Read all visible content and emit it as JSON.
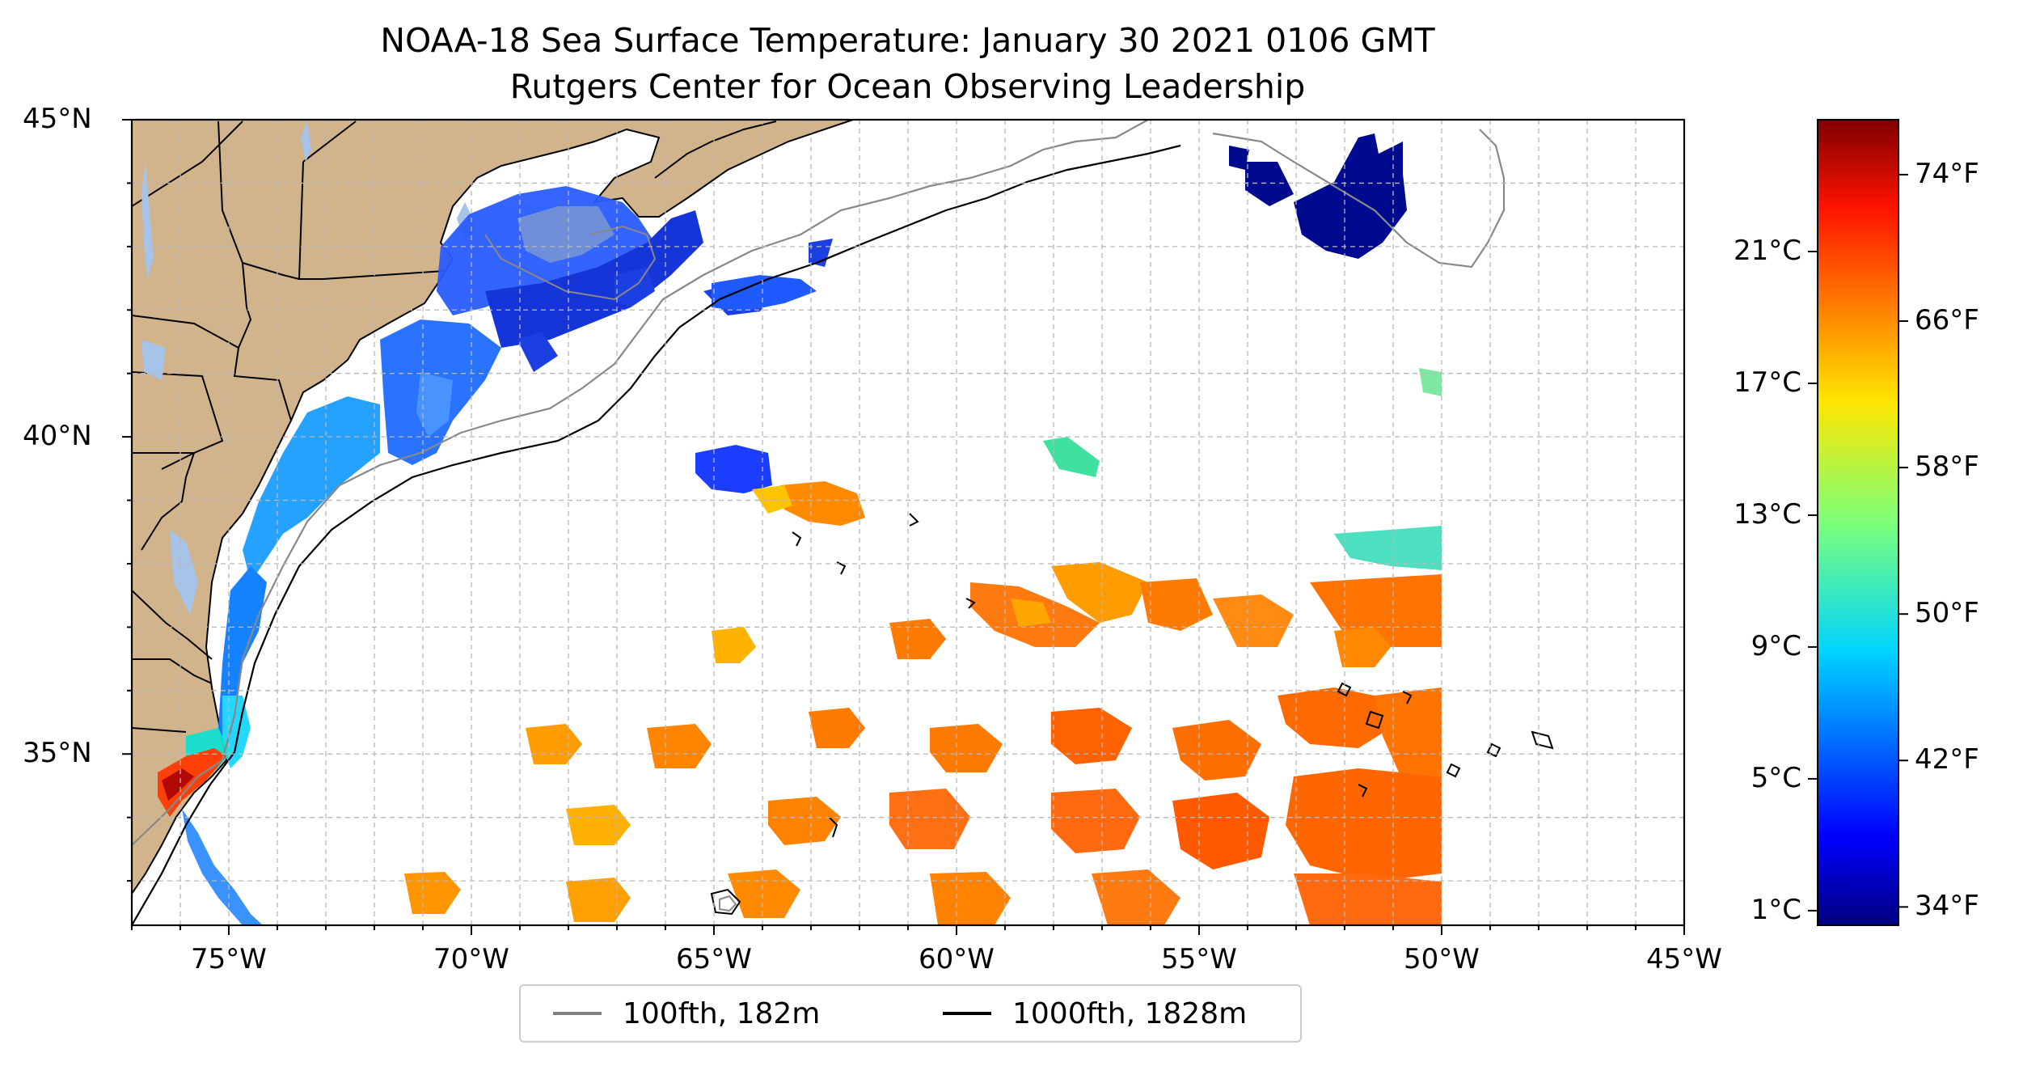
{
  "title": "NOAA-18 Sea Surface Temperature: January 30 2021 0106 GMT",
  "subtitle": "Rutgers Center for Ocean Observing Leadership",
  "map": {
    "extent": {
      "lon": [
        -77,
        -45
      ],
      "lat": [
        32.3,
        45
      ]
    },
    "lon_ticks": [
      {
        "value": -75,
        "label": "75°W"
      },
      {
        "value": -70,
        "label": "70°W"
      },
      {
        "value": -65,
        "label": "65°W"
      },
      {
        "value": -60,
        "label": "60°W"
      },
      {
        "value": -55,
        "label": "55°W"
      },
      {
        "value": -50,
        "label": "50°W"
      },
      {
        "value": -45,
        "label": "45°W"
      }
    ],
    "lat_ticks": [
      {
        "value": 45,
        "label": "45°N"
      },
      {
        "value": 40,
        "label": "40°N"
      },
      {
        "value": 35,
        "label": "35°N"
      }
    ],
    "grid": true,
    "land_color": "#d2b48c",
    "lake_color": "#a6c3ea",
    "contour_100_color": "#888888",
    "contour_1000_color": "#000000"
  },
  "legend": {
    "items": [
      {
        "label": "100fth, 182m",
        "color": "#808080"
      },
      {
        "label": "1000fth, 1828m",
        "color": "#000000"
      }
    ]
  },
  "colorbar": {
    "colormap": "jet",
    "range_f": [
      33,
      77
    ],
    "fahrenheit_ticks": [
      {
        "value": 34,
        "label": "34°F"
      },
      {
        "value": 42,
        "label": "42°F"
      },
      {
        "value": 50,
        "label": "50°F"
      },
      {
        "value": 58,
        "label": "58°F"
      },
      {
        "value": 66,
        "label": "66°F"
      },
      {
        "value": 74,
        "label": "74°F"
      }
    ],
    "celsius_ticks": [
      {
        "value": 1,
        "label": "1°C"
      },
      {
        "value": 5,
        "label": "5°C"
      },
      {
        "value": 9,
        "label": "9°C"
      },
      {
        "value": 13,
        "label": "13°C"
      },
      {
        "value": 17,
        "label": "17°C"
      },
      {
        "value": 21,
        "label": "21°C"
      }
    ]
  }
}
